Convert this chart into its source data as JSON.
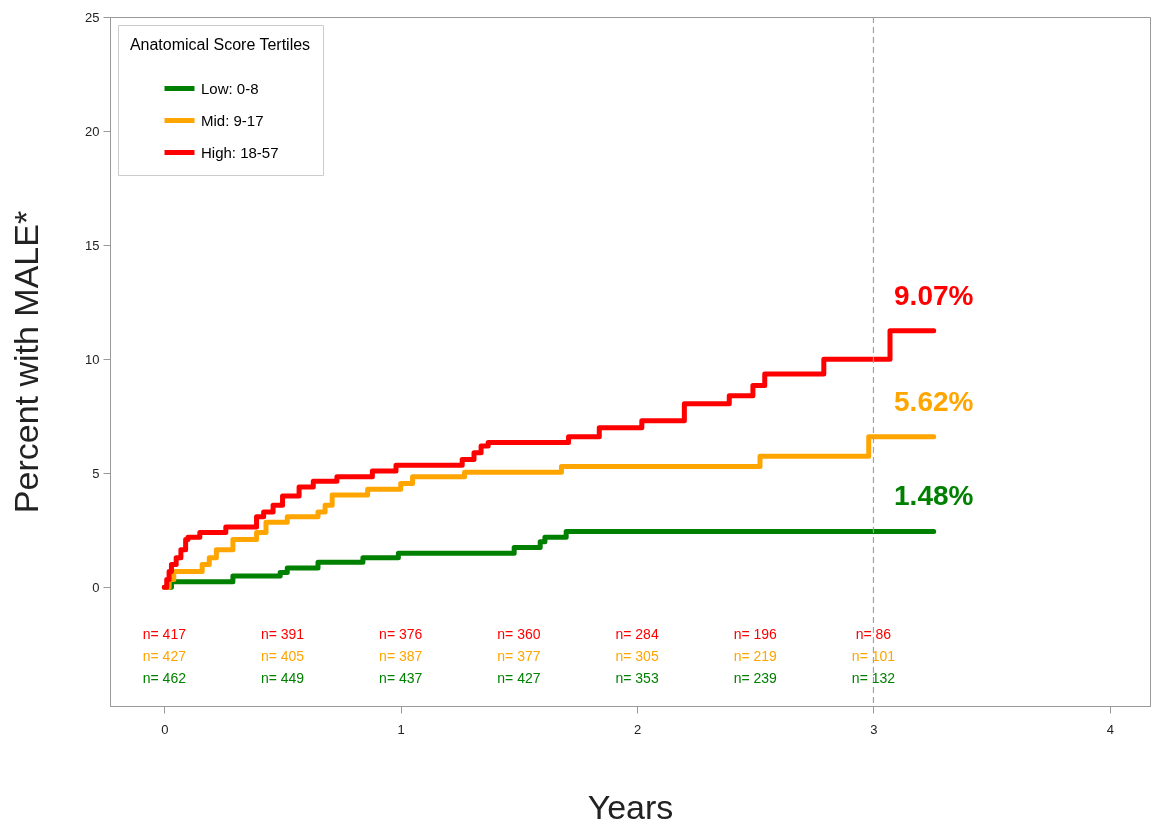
{
  "chart_data": {
    "type": "step",
    "xlabel": "Years",
    "ylabel": "Percent with MALE*",
    "legend_title": "Anatomical Score Tertiles",
    "xlim": [
      -0.23,
      4.17
    ],
    "xticks": [
      0,
      1,
      2,
      3,
      4
    ],
    "ylim": [
      -5.2,
      25
    ],
    "yticks": [
      0,
      5,
      10,
      15,
      20,
      25
    ],
    "grid": false,
    "legend": "top left",
    "marker": "none",
    "line_style": "solid",
    "series": [
      {
        "name": "Low:   0-8",
        "color": "#008000",
        "x": [
          0,
          0.03,
          0.29,
          0.49,
          0.52,
          0.65,
          0.84,
          0.99,
          1.48,
          1.59,
          1.61,
          1.7,
          3.255
        ],
        "values": [
          0,
          0.25,
          0.5,
          0.65,
          0.85,
          1.1,
          1.3,
          1.5,
          1.75,
          2.0,
          2.2,
          2.45,
          2.45
        ]
      },
      {
        "name": "Mid:   9-17",
        "color": "#ffa500",
        "x": [
          0,
          0.02,
          0.04,
          0.16,
          0.19,
          0.22,
          0.29,
          0.39,
          0.43,
          0.52,
          0.65,
          0.68,
          0.71,
          0.86,
          1.0,
          1.05,
          1.27,
          1.68,
          2.52,
          2.98,
          3.255
        ],
        "values": [
          0,
          0.35,
          0.7,
          1.0,
          1.3,
          1.65,
          2.1,
          2.4,
          2.85,
          3.1,
          3.3,
          3.6,
          4.05,
          4.3,
          4.55,
          4.85,
          5.05,
          5.3,
          5.75,
          6.6,
          6.6
        ]
      },
      {
        "name": "High: 18-57",
        "color": "#ff0000",
        "x": [
          0,
          0.01,
          0.02,
          0.03,
          0.05,
          0.07,
          0.09,
          0.1,
          0.15,
          0.26,
          0.39,
          0.42,
          0.46,
          0.5,
          0.57,
          0.63,
          0.73,
          0.88,
          0.98,
          1.26,
          1.31,
          1.34,
          1.37,
          1.71,
          1.84,
          2.02,
          2.2,
          2.39,
          2.49,
          2.54,
          2.79,
          3.07,
          3.255
        ],
        "values": [
          0,
          0.35,
          0.7,
          1.0,
          1.3,
          1.65,
          2.1,
          2.2,
          2.4,
          2.65,
          3.1,
          3.3,
          3.6,
          4.0,
          4.4,
          4.65,
          4.85,
          5.1,
          5.35,
          5.6,
          5.9,
          6.2,
          6.35,
          6.6,
          7.0,
          7.3,
          8.05,
          8.4,
          8.85,
          9.35,
          10.0,
          11.25,
          11.25
        ]
      }
    ],
    "ref_lines": [
      {
        "axis": "x",
        "value": 3,
        "color": "#a0a0a0",
        "line_style": "dashed"
      }
    ],
    "annotations": [
      "9.07%",
      "5.62%",
      "1.48%",
      "n= 417",
      "n= 427",
      "n= 462",
      "n= 391",
      "n= 405",
      "n= 449",
      "n= 376",
      "n= 387",
      "n= 437",
      "n= 360",
      "n= 377",
      "n= 427",
      "n= 284",
      "n= 305",
      "n= 353",
      "n= 196",
      "n= 219",
      "n= 239",
      "n=  86",
      "n= 101",
      "n= 132"
    ]
  }
}
